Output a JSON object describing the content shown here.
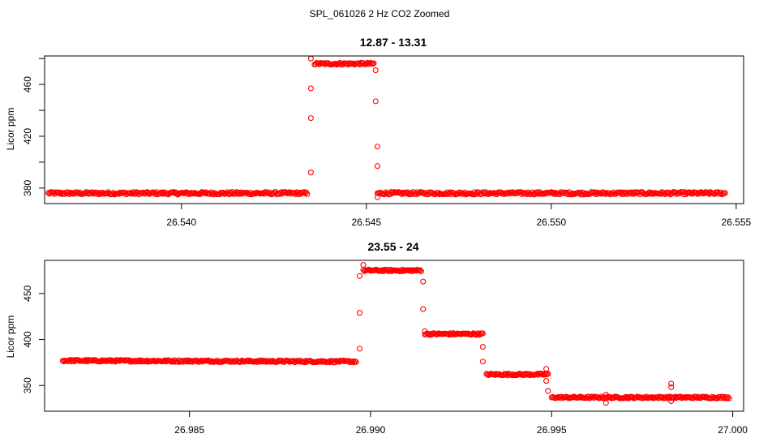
{
  "figure": {
    "title": "SPL_061026  2 Hz CO2 Zoomed"
  },
  "chart_data": [
    {
      "type": "scatter",
      "title": "12.87 - 13.31",
      "xlabel": "",
      "ylabel": "Licor ppm",
      "xlim": [
        26.5363,
        26.5552
      ],
      "ylim": [
        368,
        482
      ],
      "xticks": [
        26.54,
        26.545,
        26.55,
        26.555
      ],
      "xtick_labels": [
        "26.540",
        "26.545",
        "26.550",
        "26.555"
      ],
      "yticks": [
        380,
        400,
        420,
        440,
        460,
        480
      ],
      "ytick_labels": [
        "380",
        "",
        "420",
        "",
        "460",
        ""
      ],
      "color": "#ff0000",
      "marker": "open-circle",
      "segments": [
        {
          "x": [
            26.5364,
            26.5434
          ],
          "y": [
            376,
            376
          ],
          "noise": 1.0
        },
        {
          "x": [
            26.5436,
            26.5452
          ],
          "y": [
            476,
            476
          ],
          "noise": 0.8
        },
        {
          "x": [
            26.5453,
            26.5547
          ],
          "y": [
            376,
            376
          ],
          "noise": 1.0
        }
      ],
      "transition_points": [
        {
          "x": 26.5435,
          "y": 392
        },
        {
          "x": 26.5435,
          "y": 434
        },
        {
          "x": 26.5435,
          "y": 457
        },
        {
          "x": 26.5435,
          "y": 480
        },
        {
          "x": 26.54525,
          "y": 471
        },
        {
          "x": 26.54525,
          "y": 447
        },
        {
          "x": 26.5453,
          "y": 412
        },
        {
          "x": 26.5453,
          "y": 397
        },
        {
          "x": 26.5453,
          "y": 373
        }
      ]
    },
    {
      "type": "scatter",
      "title": "23.55 - 24",
      "xlabel": "",
      "ylabel": "Licor ppm",
      "xlim": [
        26.981,
        27.0003
      ],
      "ylim": [
        322,
        486
      ],
      "xticks": [
        26.985,
        26.99,
        26.995,
        27.0
      ],
      "xtick_labels": [
        "26.985",
        "26.990",
        "26.995",
        "27.000"
      ],
      "yticks": [
        350,
        400,
        450
      ],
      "ytick_labels": [
        "350",
        "400",
        "450"
      ],
      "color": "#ff0000",
      "marker": "open-circle",
      "segments": [
        {
          "x": [
            26.9815,
            26.9896
          ],
          "y": [
            377,
            376
          ],
          "noise": 1.0
        },
        {
          "x": [
            26.9898,
            26.9914
          ],
          "y": [
            475,
            475
          ],
          "noise": 1.0
        },
        {
          "x": [
            26.9915,
            26.9931
          ],
          "y": [
            406,
            406
          ],
          "noise": 1.0
        },
        {
          "x": [
            26.9932,
            26.9949
          ],
          "y": [
            362,
            362
          ],
          "noise": 1.0
        },
        {
          "x": [
            26.995,
            26.9999
          ],
          "y": [
            337,
            337
          ],
          "noise": 1.0
        }
      ],
      "transition_points": [
        {
          "x": 26.9897,
          "y": 390
        },
        {
          "x": 26.9897,
          "y": 429
        },
        {
          "x": 26.9897,
          "y": 469
        },
        {
          "x": 26.9898,
          "y": 481
        },
        {
          "x": 26.99145,
          "y": 463
        },
        {
          "x": 26.99145,
          "y": 433
        },
        {
          "x": 26.9915,
          "y": 409
        },
        {
          "x": 26.9931,
          "y": 392
        },
        {
          "x": 26.9931,
          "y": 376
        },
        {
          "x": 26.99485,
          "y": 368
        },
        {
          "x": 26.99485,
          "y": 355
        },
        {
          "x": 26.9949,
          "y": 344
        },
        {
          "x": 26.9965,
          "y": 340
        },
        {
          "x": 26.9965,
          "y": 331
        },
        {
          "x": 26.9983,
          "y": 352
        },
        {
          "x": 26.9983,
          "y": 348
        },
        {
          "x": 26.9983,
          "y": 333
        }
      ]
    }
  ]
}
